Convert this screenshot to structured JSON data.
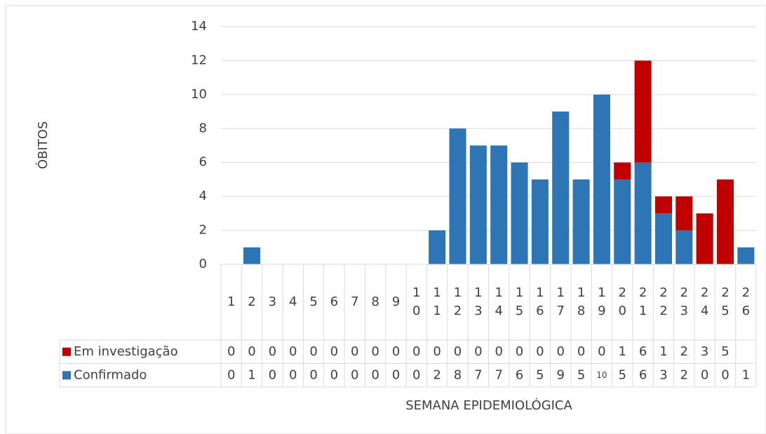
{
  "chart_data": {
    "type": "stacked-bar",
    "y_label": "ÓBITOS",
    "x_label": "SEMANA EPIDEMIOLÓGICA",
    "categories": [
      "1",
      "2",
      "3",
      "4",
      "5",
      "6",
      "7",
      "8",
      "9",
      "10",
      "11",
      "12",
      "13",
      "14",
      "15",
      "16",
      "17",
      "18",
      "19",
      "20",
      "21",
      "22",
      "23",
      "24",
      "25",
      "26"
    ],
    "series": [
      {
        "name": "Confirmado",
        "color": "#2e75b6",
        "values": [
          0,
          1,
          0,
          0,
          0,
          0,
          0,
          0,
          0,
          0,
          2,
          8,
          7,
          7,
          6,
          5,
          9,
          5,
          10,
          5,
          6,
          3,
          2,
          0,
          0,
          1
        ]
      },
      {
        "name": "Em investigação",
        "color": "#c00000",
        "values": [
          0,
          0,
          0,
          0,
          0,
          0,
          0,
          0,
          0,
          0,
          0,
          0,
          0,
          0,
          0,
          0,
          0,
          0,
          0,
          1,
          6,
          1,
          2,
          3,
          5,
          null
        ]
      }
    ],
    "ylim": [
      0,
      14
    ],
    "yticks": [
      0,
      2,
      4,
      6,
      8,
      10,
      12,
      14
    ],
    "grid": true
  }
}
